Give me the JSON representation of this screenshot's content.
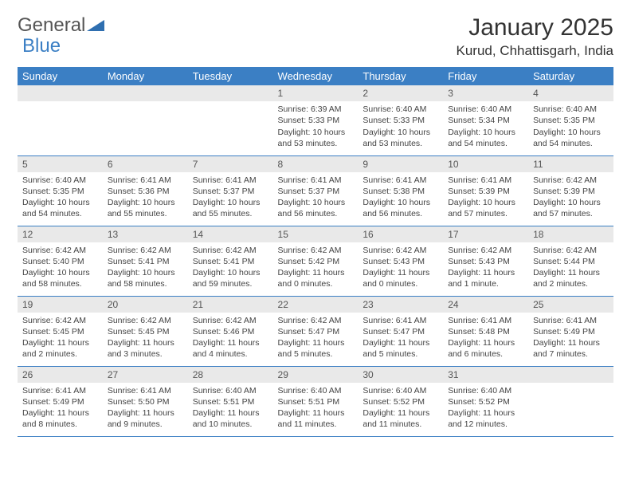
{
  "brand": {
    "part1": "General",
    "part2": "Blue"
  },
  "title": "January 2025",
  "location": "Kurud, Chhattisgarh, India",
  "colors": {
    "header_bg": "#3b7fc4",
    "header_fg": "#ffffff",
    "daynum_bg": "#e9e9e9",
    "row_border": "#3b7fc4",
    "text": "#444444"
  },
  "typography": {
    "title_fontsize": 30,
    "location_fontsize": 17,
    "dayheader_fontsize": 13,
    "cell_fontsize": 10.5
  },
  "days_of_week": [
    "Sunday",
    "Monday",
    "Tuesday",
    "Wednesday",
    "Thursday",
    "Friday",
    "Saturday"
  ],
  "labels": {
    "sunrise": "Sunrise:",
    "sunset": "Sunset:",
    "daylight": "Daylight:"
  },
  "weeks": [
    [
      null,
      null,
      null,
      {
        "n": "1",
        "sunrise": "6:39 AM",
        "sunset": "5:33 PM",
        "daylight": "10 hours and 53 minutes."
      },
      {
        "n": "2",
        "sunrise": "6:40 AM",
        "sunset": "5:33 PM",
        "daylight": "10 hours and 53 minutes."
      },
      {
        "n": "3",
        "sunrise": "6:40 AM",
        "sunset": "5:34 PM",
        "daylight": "10 hours and 54 minutes."
      },
      {
        "n": "4",
        "sunrise": "6:40 AM",
        "sunset": "5:35 PM",
        "daylight": "10 hours and 54 minutes."
      }
    ],
    [
      {
        "n": "5",
        "sunrise": "6:40 AM",
        "sunset": "5:35 PM",
        "daylight": "10 hours and 54 minutes."
      },
      {
        "n": "6",
        "sunrise": "6:41 AM",
        "sunset": "5:36 PM",
        "daylight": "10 hours and 55 minutes."
      },
      {
        "n": "7",
        "sunrise": "6:41 AM",
        "sunset": "5:37 PM",
        "daylight": "10 hours and 55 minutes."
      },
      {
        "n": "8",
        "sunrise": "6:41 AM",
        "sunset": "5:37 PM",
        "daylight": "10 hours and 56 minutes."
      },
      {
        "n": "9",
        "sunrise": "6:41 AM",
        "sunset": "5:38 PM",
        "daylight": "10 hours and 56 minutes."
      },
      {
        "n": "10",
        "sunrise": "6:41 AM",
        "sunset": "5:39 PM",
        "daylight": "10 hours and 57 minutes."
      },
      {
        "n": "11",
        "sunrise": "6:42 AM",
        "sunset": "5:39 PM",
        "daylight": "10 hours and 57 minutes."
      }
    ],
    [
      {
        "n": "12",
        "sunrise": "6:42 AM",
        "sunset": "5:40 PM",
        "daylight": "10 hours and 58 minutes."
      },
      {
        "n": "13",
        "sunrise": "6:42 AM",
        "sunset": "5:41 PM",
        "daylight": "10 hours and 58 minutes."
      },
      {
        "n": "14",
        "sunrise": "6:42 AM",
        "sunset": "5:41 PM",
        "daylight": "10 hours and 59 minutes."
      },
      {
        "n": "15",
        "sunrise": "6:42 AM",
        "sunset": "5:42 PM",
        "daylight": "11 hours and 0 minutes."
      },
      {
        "n": "16",
        "sunrise": "6:42 AM",
        "sunset": "5:43 PM",
        "daylight": "11 hours and 0 minutes."
      },
      {
        "n": "17",
        "sunrise": "6:42 AM",
        "sunset": "5:43 PM",
        "daylight": "11 hours and 1 minute."
      },
      {
        "n": "18",
        "sunrise": "6:42 AM",
        "sunset": "5:44 PM",
        "daylight": "11 hours and 2 minutes."
      }
    ],
    [
      {
        "n": "19",
        "sunrise": "6:42 AM",
        "sunset": "5:45 PM",
        "daylight": "11 hours and 2 minutes."
      },
      {
        "n": "20",
        "sunrise": "6:42 AM",
        "sunset": "5:45 PM",
        "daylight": "11 hours and 3 minutes."
      },
      {
        "n": "21",
        "sunrise": "6:42 AM",
        "sunset": "5:46 PM",
        "daylight": "11 hours and 4 minutes."
      },
      {
        "n": "22",
        "sunrise": "6:42 AM",
        "sunset": "5:47 PM",
        "daylight": "11 hours and 5 minutes."
      },
      {
        "n": "23",
        "sunrise": "6:41 AM",
        "sunset": "5:47 PM",
        "daylight": "11 hours and 5 minutes."
      },
      {
        "n": "24",
        "sunrise": "6:41 AM",
        "sunset": "5:48 PM",
        "daylight": "11 hours and 6 minutes."
      },
      {
        "n": "25",
        "sunrise": "6:41 AM",
        "sunset": "5:49 PM",
        "daylight": "11 hours and 7 minutes."
      }
    ],
    [
      {
        "n": "26",
        "sunrise": "6:41 AM",
        "sunset": "5:49 PM",
        "daylight": "11 hours and 8 minutes."
      },
      {
        "n": "27",
        "sunrise": "6:41 AM",
        "sunset": "5:50 PM",
        "daylight": "11 hours and 9 minutes."
      },
      {
        "n": "28",
        "sunrise": "6:40 AM",
        "sunset": "5:51 PM",
        "daylight": "11 hours and 10 minutes."
      },
      {
        "n": "29",
        "sunrise": "6:40 AM",
        "sunset": "5:51 PM",
        "daylight": "11 hours and 11 minutes."
      },
      {
        "n": "30",
        "sunrise": "6:40 AM",
        "sunset": "5:52 PM",
        "daylight": "11 hours and 11 minutes."
      },
      {
        "n": "31",
        "sunrise": "6:40 AM",
        "sunset": "5:52 PM",
        "daylight": "11 hours and 12 minutes."
      },
      null
    ]
  ]
}
